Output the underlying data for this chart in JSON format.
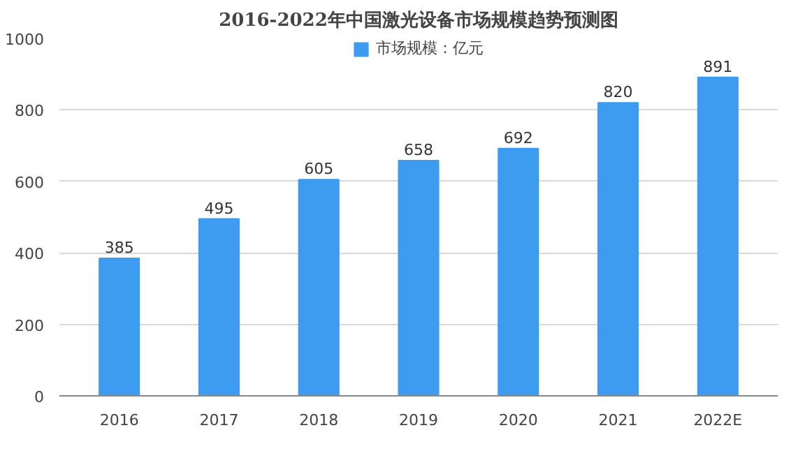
{
  "chart_data": {
    "type": "bar",
    "title": "2016-2022年中国激光设备市场规模趋势预测图",
    "categories": [
      "2016",
      "2017",
      "2018",
      "2019",
      "2020",
      "2021",
      "2022E"
    ],
    "series": [
      {
        "name": "市场规模：亿元",
        "color": "#3d9cf0",
        "values": [
          385,
          495,
          605,
          658,
          692,
          820,
          891
        ]
      }
    ],
    "ylim": [
      0,
      1000
    ],
    "yticks": [
      0,
      200,
      400,
      600,
      800,
      1000
    ],
    "grid": "y",
    "legend": "top",
    "data_labels": true
  }
}
